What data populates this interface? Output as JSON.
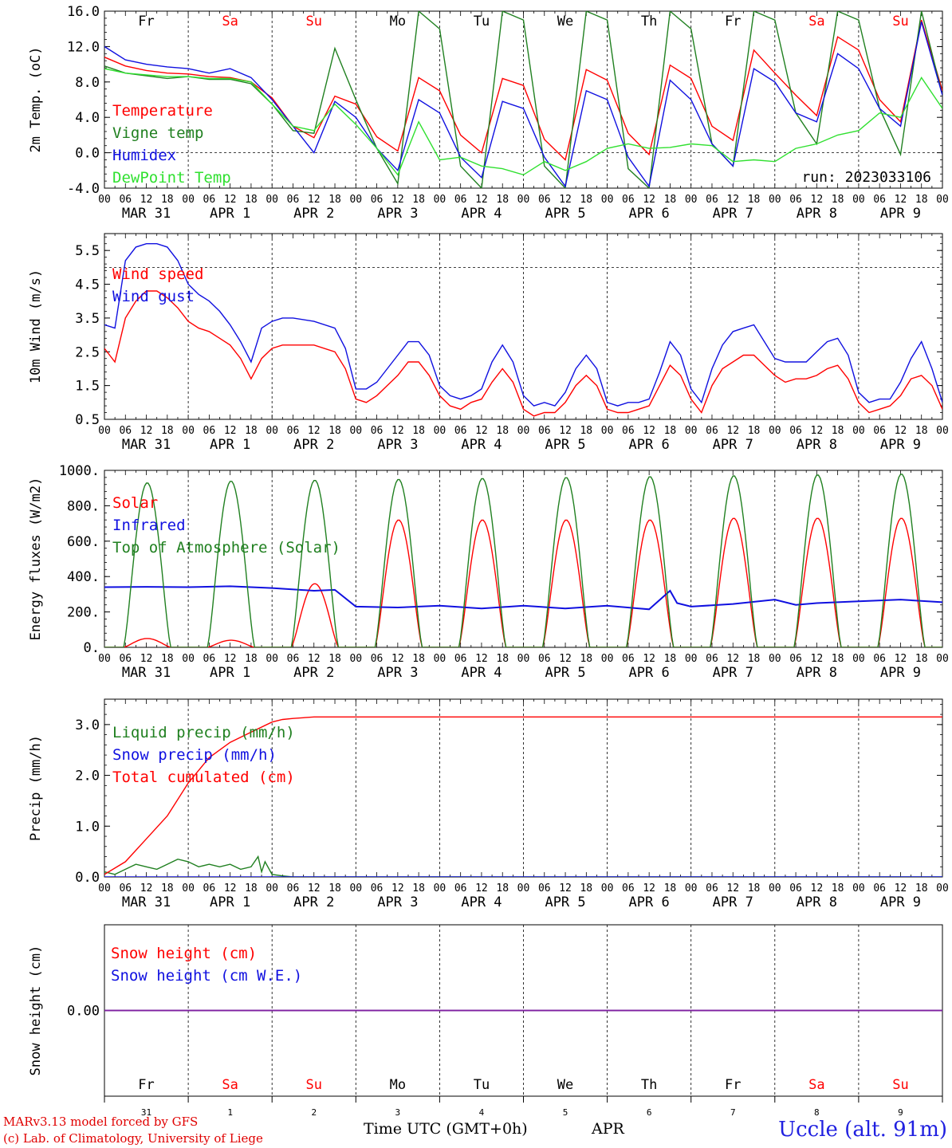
{
  "days": {
    "weekdays": [
      "Fr",
      "Sa",
      "Su",
      "Mo",
      "Tu",
      "We",
      "Th",
      "Fr",
      "Sa",
      "Su"
    ],
    "weekend_flags": [
      false,
      true,
      true,
      false,
      false,
      false,
      false,
      false,
      true,
      true
    ],
    "date_labels": [
      "MAR 31",
      "APR  1",
      "APR  2",
      "APR  3",
      "APR  4",
      "APR  5",
      "APR  6",
      "APR  7",
      "APR  8",
      "APR  9"
    ],
    "day_numbers": [
      "31",
      "1",
      "2",
      "3",
      "4",
      "5",
      "6",
      "7",
      "8",
      "9"
    ],
    "hour_labels": [
      "00",
      "06",
      "12",
      "18"
    ],
    "final_hour_label": "00"
  },
  "colors": {
    "red": "#ff0000",
    "green": "#208020",
    "blue": "#1010e0",
    "lightgreen": "#30e030",
    "purple": "#8020a0",
    "weekend": "#ff0000"
  },
  "footer": {
    "credit_line1": "MARv3.13 model forced by GFS",
    "credit_line2": "(c) Lab. of Climatology, University of Liege",
    "time_label": "Time UTC (GMT+0h)",
    "month_label": "APR",
    "station": "Uccle (alt. 91m)"
  },
  "chart_data": [
    {
      "type": "line",
      "ylabel": "2m Temp. (oC)",
      "ylim": [
        -4,
        16
      ],
      "yticks": [
        "16.0",
        "12.0",
        "8.0",
        "4.0",
        "0.0",
        "-4.0"
      ],
      "ytick_values": [
        16,
        12,
        8,
        4,
        0,
        -4
      ],
      "reference_line": 0,
      "annotation": "run: 2023033106",
      "legend_placement": "top-left",
      "x_unit": "hours since 31 Mar 00 UTC",
      "series": [
        {
          "name": "Temperature",
          "color_key": "red",
          "x": [
            0,
            6,
            12,
            18,
            24,
            30,
            36,
            42,
            48,
            54,
            60,
            66,
            72,
            78,
            84,
            90,
            96,
            102,
            108,
            114,
            120,
            126,
            132,
            138,
            144,
            150,
            156,
            162,
            168,
            174,
            180,
            186,
            192,
            198,
            204,
            210,
            216,
            222,
            228,
            234,
            240
          ],
          "y": [
            10.8,
            9.8,
            9.3,
            9.0,
            8.9,
            8.6,
            8.5,
            8.0,
            6.2,
            3.0,
            1.7,
            6.4,
            5.5,
            1.8,
            0.2,
            8.5,
            7.0,
            2.0,
            0.0,
            8.4,
            7.6,
            1.5,
            -0.8,
            9.4,
            8.2,
            2.2,
            -0.2,
            9.9,
            8.4,
            3.0,
            1.4,
            11.6,
            9.0,
            6.5,
            4.2,
            13.1,
            11.6,
            6.0,
            3.5,
            15.0,
            7.0
          ]
        },
        {
          "name": "Vigne temp",
          "color_key": "green",
          "x": [
            0,
            6,
            12,
            18,
            24,
            30,
            36,
            42,
            48,
            54,
            60,
            66,
            72,
            78,
            84,
            90,
            96,
            102,
            108,
            114,
            120,
            126,
            132,
            138,
            144,
            150,
            156,
            162,
            168,
            174,
            180,
            186,
            192,
            198,
            204,
            210,
            216,
            222,
            228,
            234,
            240
          ],
          "y": [
            9.8,
            9.0,
            8.7,
            8.4,
            8.6,
            8.3,
            8.3,
            7.8,
            5.5,
            2.5,
            2.2,
            11.8,
            6.0,
            0.5,
            -3.5,
            16,
            14,
            -1.5,
            -4,
            16,
            15,
            -1.5,
            -4,
            16,
            15,
            -1.8,
            -4,
            16,
            14,
            1.0,
            -1.5,
            16,
            15,
            4.5,
            1.0,
            16,
            15,
            5.0,
            -0.2,
            16,
            6.5
          ]
        },
        {
          "name": "Humidex",
          "color_key": "blue",
          "x": [
            0,
            6,
            12,
            18,
            24,
            30,
            36,
            42,
            48,
            54,
            60,
            66,
            72,
            78,
            84,
            90,
            96,
            102,
            108,
            114,
            120,
            126,
            132,
            138,
            144,
            150,
            156,
            162,
            168,
            174,
            180,
            186,
            192,
            198,
            204,
            210,
            216,
            222,
            228,
            234,
            240
          ],
          "y": [
            12.0,
            10.5,
            10.0,
            9.7,
            9.5,
            9.0,
            9.5,
            8.5,
            6.0,
            3.0,
            0.0,
            5.8,
            4.0,
            0.5,
            -2.0,
            6.0,
            4.5,
            -0.5,
            -2.8,
            5.8,
            5.0,
            -0.5,
            -3.8,
            7.0,
            6.0,
            -0.5,
            -3.8,
            8.2,
            6.0,
            1.0,
            -1.5,
            9.5,
            8.0,
            4.5,
            3.5,
            11.2,
            9.5,
            5.0,
            3.0,
            14.8,
            6.5
          ]
        },
        {
          "name": "DewPoint Temp",
          "color_key": "lightgreen",
          "x": [
            0,
            6,
            12,
            18,
            24,
            30,
            36,
            42,
            48,
            54,
            60,
            66,
            72,
            78,
            84,
            90,
            96,
            102,
            108,
            114,
            120,
            126,
            132,
            138,
            144,
            150,
            156,
            162,
            168,
            174,
            180,
            186,
            192,
            198,
            204,
            210,
            216,
            222,
            228,
            234,
            240
          ],
          "y": [
            9.5,
            9.0,
            8.8,
            8.6,
            8.6,
            8.4,
            8.4,
            8.0,
            5.5,
            3.0,
            2.5,
            5.5,
            3.2,
            0.5,
            -2.5,
            3.5,
            -0.8,
            -0.5,
            -1.5,
            -1.8,
            -2.5,
            -1.0,
            -2.0,
            -1.0,
            0.5,
            1.0,
            0.5,
            0.6,
            1.0,
            0.8,
            -1.0,
            -0.8,
            -1.0,
            0.5,
            1.0,
            2.0,
            2.5,
            4.5,
            4.0,
            8.5,
            5.0
          ]
        }
      ]
    },
    {
      "type": "line",
      "ylabel": "10m Wind (m/s)",
      "ylim": [
        0.5,
        6.0
      ],
      "yticks": [
        "5.5",
        "4.5",
        "3.5",
        "2.5",
        "1.5",
        "0.5"
      ],
      "ytick_values": [
        5.5,
        4.5,
        3.5,
        2.5,
        1.5,
        0.5
      ],
      "reference_line": 5.0,
      "legend_placement": "top-left",
      "series": [
        {
          "name": "Wind speed",
          "color_key": "red",
          "x": [
            0,
            3,
            6,
            9,
            12,
            15,
            18,
            21,
            24,
            27,
            30,
            33,
            36,
            39,
            42,
            45,
            48,
            51,
            54,
            60,
            66,
            69,
            72,
            75,
            78,
            81,
            84,
            87,
            90,
            93,
            96,
            99,
            102,
            105,
            108,
            111,
            114,
            117,
            120,
            123,
            126,
            129,
            132,
            135,
            138,
            141,
            144,
            147,
            150,
            153,
            156,
            159,
            162,
            165,
            168,
            171,
            174,
            177,
            180,
            183,
            186,
            189,
            192,
            195,
            198,
            201,
            204,
            207,
            210,
            213,
            216,
            219,
            222,
            225,
            228,
            231,
            234,
            237,
            240
          ],
          "y": [
            2.6,
            2.2,
            3.5,
            4.0,
            4.3,
            4.3,
            4.1,
            3.8,
            3.4,
            3.2,
            3.1,
            2.9,
            2.7,
            2.3,
            1.7,
            2.3,
            2.6,
            2.7,
            2.7,
            2.7,
            2.5,
            2.0,
            1.1,
            1.0,
            1.2,
            1.5,
            1.8,
            2.2,
            2.2,
            1.8,
            1.2,
            0.9,
            0.8,
            1.0,
            1.1,
            1.6,
            2.0,
            1.6,
            0.8,
            0.6,
            0.7,
            0.7,
            1.0,
            1.5,
            1.8,
            1.5,
            0.8,
            0.7,
            0.7,
            0.8,
            0.9,
            1.5,
            2.1,
            1.8,
            1.1,
            0.7,
            1.5,
            2.0,
            2.2,
            2.4,
            2.4,
            2.1,
            1.8,
            1.6,
            1.7,
            1.7,
            1.8,
            2.0,
            2.1,
            1.7,
            1.0,
            0.7,
            0.8,
            0.9,
            1.2,
            1.7,
            1.8,
            1.5,
            0.8
          ]
        },
        {
          "name": "Wind gust",
          "color_key": "blue",
          "x": [
            0,
            3,
            6,
            9,
            12,
            15,
            18,
            21,
            24,
            27,
            30,
            33,
            36,
            39,
            42,
            45,
            48,
            51,
            54,
            60,
            66,
            69,
            72,
            75,
            78,
            81,
            84,
            87,
            90,
            93,
            96,
            99,
            102,
            105,
            108,
            111,
            114,
            117,
            120,
            123,
            126,
            129,
            132,
            135,
            138,
            141,
            144,
            147,
            150,
            153,
            156,
            159,
            162,
            165,
            168,
            171,
            174,
            177,
            180,
            183,
            186,
            189,
            192,
            195,
            198,
            201,
            204,
            207,
            210,
            213,
            216,
            219,
            222,
            225,
            228,
            231,
            234,
            237,
            240
          ],
          "y": [
            3.3,
            3.2,
            5.2,
            5.6,
            5.7,
            5.7,
            5.6,
            5.2,
            4.5,
            4.2,
            4.0,
            3.7,
            3.3,
            2.8,
            2.2,
            3.2,
            3.4,
            3.5,
            3.5,
            3.4,
            3.2,
            2.6,
            1.4,
            1.4,
            1.6,
            2.0,
            2.4,
            2.8,
            2.8,
            2.4,
            1.5,
            1.2,
            1.1,
            1.2,
            1.4,
            2.2,
            2.7,
            2.2,
            1.2,
            0.9,
            1.0,
            0.9,
            1.3,
            2.0,
            2.4,
            2.0,
            1.0,
            0.9,
            1.0,
            1.0,
            1.1,
            1.9,
            2.8,
            2.4,
            1.4,
            1.0,
            2.0,
            2.7,
            3.1,
            3.2,
            3.3,
            2.8,
            2.3,
            2.2,
            2.2,
            2.2,
            2.5,
            2.8,
            2.9,
            2.4,
            1.3,
            1.0,
            1.1,
            1.1,
            1.6,
            2.3,
            2.8,
            2.0,
            1.0
          ]
        }
      ]
    },
    {
      "type": "line",
      "ylabel": "Energy fluxes (W/m2)",
      "ylim": [
        0,
        1000
      ],
      "yticks": [
        "1000.",
        "800.",
        "600.",
        "400.",
        "200.",
        "0."
      ],
      "ytick_values": [
        1000,
        800,
        600,
        400,
        200,
        0
      ],
      "legend_placement": "top-left",
      "series": [
        {
          "name": "Solar",
          "color_key": "red",
          "day_peaks": [
            50,
            40,
            360,
            720,
            720,
            720,
            720,
            730,
            730,
            730
          ]
        },
        {
          "name": "Infrared",
          "color_key": "blue",
          "x": [
            0,
            12,
            24,
            36,
            48,
            60,
            66,
            72,
            84,
            96,
            108,
            120,
            132,
            144,
            156,
            162,
            164,
            168,
            180,
            192,
            198,
            204,
            216,
            228,
            240
          ],
          "y": [
            340,
            342,
            340,
            345,
            335,
            320,
            325,
            230,
            225,
            235,
            220,
            235,
            220,
            235,
            215,
            320,
            250,
            230,
            245,
            270,
            240,
            250,
            260,
            270,
            255
          ]
        },
        {
          "name": "Top of Atmosphere (Solar)",
          "color_key": "green",
          "day_peaks": [
            930,
            940,
            945,
            950,
            955,
            960,
            965,
            970,
            975,
            980
          ]
        }
      ],
      "sun_hours": [
        5.5,
        19.0
      ]
    },
    {
      "type": "line",
      "ylabel": "Precip (mm/h)",
      "ylim": [
        0,
        3.5
      ],
      "yticks": [
        "3.0",
        "2.0",
        "1.0",
        "0.0"
      ],
      "ytick_values": [
        3.0,
        2.0,
        1.0,
        0.0
      ],
      "legend_placement": "top-left",
      "series": [
        {
          "name": "Liquid precip (mm/h)",
          "color_key": "green",
          "x": [
            0,
            3,
            6,
            9,
            12,
            15,
            18,
            21,
            24,
            27,
            30,
            33,
            36,
            39,
            42,
            44,
            45,
            46,
            48,
            51,
            54,
            60,
            240
          ],
          "y": [
            0.1,
            0.05,
            0.15,
            0.25,
            0.2,
            0.15,
            0.25,
            0.35,
            0.3,
            0.2,
            0.25,
            0.2,
            0.25,
            0.15,
            0.2,
            0.4,
            0.1,
            0.3,
            0.05,
            0.02,
            0.0,
            0.0,
            0.0
          ]
        },
        {
          "name": "Snow precip (mm/h)",
          "color_key": "blue",
          "x": [
            0,
            240
          ],
          "y": [
            0,
            0
          ]
        },
        {
          "name": "Total cumulated (cm)",
          "color_key": "red",
          "x": [
            0,
            6,
            12,
            18,
            24,
            30,
            36,
            42,
            48,
            51,
            54,
            60,
            240
          ],
          "y": [
            0.05,
            0.3,
            0.75,
            1.2,
            1.85,
            2.35,
            2.65,
            2.85,
            3.05,
            3.1,
            3.12,
            3.15,
            3.15
          ]
        }
      ]
    },
    {
      "type": "line",
      "ylabel": "Snow height (cm)",
      "ylim": [
        -1,
        1
      ],
      "yticks": [
        "0.00"
      ],
      "ytick_values": [
        0
      ],
      "legend_placement": "top-left",
      "series": [
        {
          "name": "Snow height (cm)",
          "color_key": "red",
          "x": [
            0,
            240
          ],
          "y": [
            0,
            0
          ]
        },
        {
          "name": "Snow height (cm W.E.)",
          "color_key": "blue",
          "x": [
            0,
            240
          ],
          "y": [
            0,
            0
          ]
        }
      ]
    }
  ]
}
